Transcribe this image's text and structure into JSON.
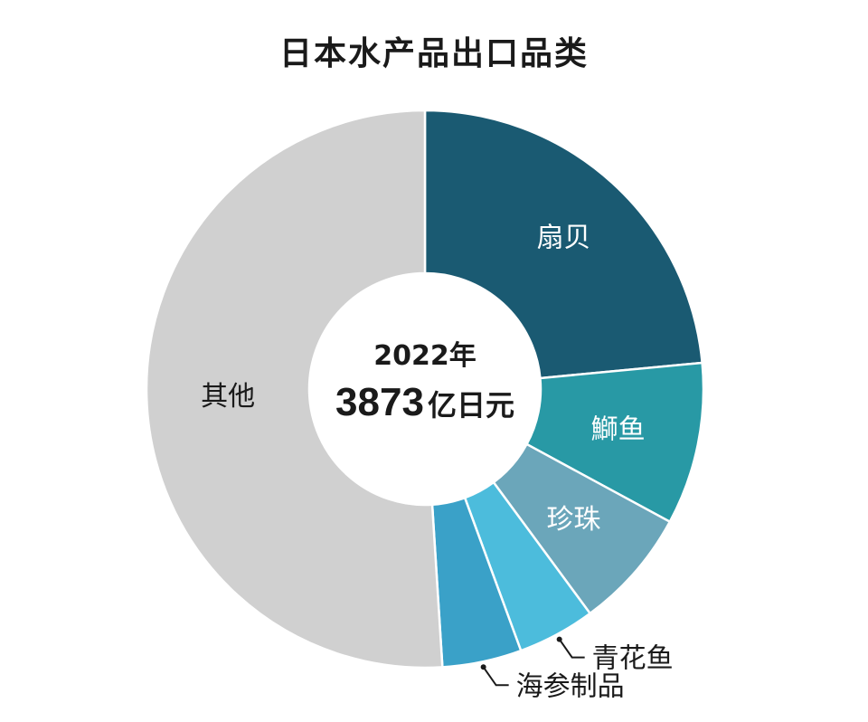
{
  "chart_data": {
    "type": "pie",
    "title": "日本水产品出口品类",
    "center": {
      "year": "2022年",
      "total_value": "3873",
      "total_unit": "亿日元"
    },
    "categories": [
      "扇贝",
      "鰤鱼",
      "珍珠",
      "青花鱼",
      "海参制品",
      "其他"
    ],
    "values": [
      23.5,
      9.4,
      7.0,
      4.5,
      4.6,
      51.0
    ],
    "colors": {
      "扇贝": "#1a5a72",
      "鰤鱼": "#2899a5",
      "珍珠": "#6ba6ba",
      "青花鱼": "#4cbcdc",
      "海参制品": "#3aa1c8",
      "其他": "#d0d0d0"
    },
    "label_colors": {
      "扇贝": "#ffffff",
      "鰤鱼": "#ffffff",
      "珍珠": "#ffffff",
      "青花鱼": "#1a1a1a",
      "海参制品": "#1a1a1a",
      "其他": "#1a1a1a"
    },
    "external_labels": [
      "青花鱼",
      "海参制品"
    ],
    "start_angle": "12 o'clock",
    "direction": "clockwise",
    "legend": "none"
  }
}
